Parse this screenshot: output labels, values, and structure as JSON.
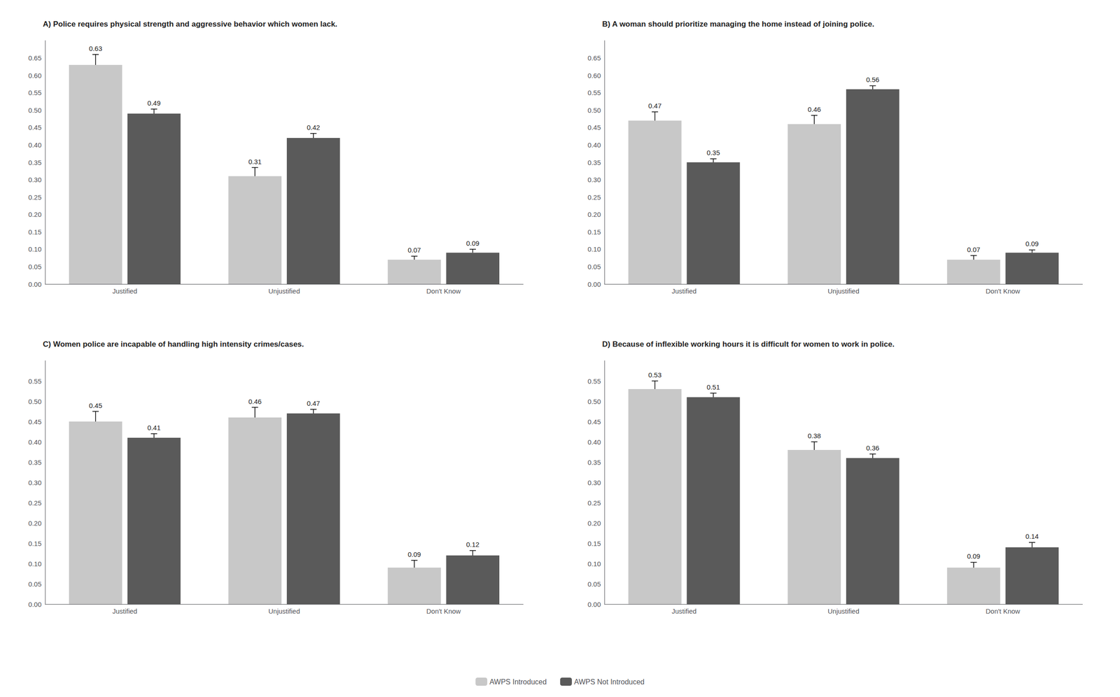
{
  "chart_data": [
    {
      "type": "bar",
      "title": "A) Police requires physical strength and aggressive behavior which women lack.",
      "categories": [
        "Justified",
        "Unjustified",
        "Don't Know"
      ],
      "series": [
        {
          "name": "AWPS Introduced",
          "color": "#c8c8c8",
          "values": [
            0.63,
            0.31,
            0.07
          ],
          "errors": [
            0.03,
            0.025,
            0.01
          ]
        },
        {
          "name": "AWPS Not Introduced",
          "color": "#5a5a5a",
          "values": [
            0.49,
            0.42,
            0.09
          ],
          "errors": [
            0.013,
            0.013,
            0.01
          ]
        }
      ],
      "ylim": [
        0,
        0.7
      ],
      "yticks": [
        {
          "value": 0,
          "label": "0.00"
        },
        0.05,
        {
          "value": 0.1,
          "label": "0.10"
        },
        0.15,
        {
          "value": 0.2,
          "label": "0.20"
        },
        0.25,
        {
          "value": 0.3,
          "label": "0.30"
        },
        0.35,
        {
          "value": 0.4,
          "label": "0.40"
        },
        0.45,
        {
          "value": 0.5,
          "label": "0.50"
        },
        0.55,
        {
          "value": 0.6,
          "label": "0.60"
        },
        0.65
      ],
      "grid": false,
      "legend": "bottom",
      "data_labels": true
    },
    {
      "type": "bar",
      "title": "B) A woman should prioritize managing the home instead of joining police.",
      "categories": [
        "Justified",
        "Unjustified",
        "Don't Know"
      ],
      "series": [
        {
          "name": "AWPS Introduced",
          "color": "#c8c8c8",
          "values": [
            0.47,
            0.46,
            0.07
          ],
          "errors": [
            0.025,
            0.025,
            0.012
          ]
        },
        {
          "name": "AWPS Not Introduced",
          "color": "#5a5a5a",
          "values": [
            0.35,
            0.56,
            0.09
          ],
          "errors": [
            0.01,
            0.01,
            0.008
          ]
        }
      ],
      "ylim": [
        0,
        0.7
      ],
      "yticks": [
        {
          "value": 0,
          "label": "0.00"
        },
        0.05,
        {
          "value": 0.1,
          "label": "0.10"
        },
        0.15,
        {
          "value": 0.2,
          "label": "0.20"
        },
        0.25,
        {
          "value": 0.3,
          "label": "0.30"
        },
        0.35,
        {
          "value": 0.4,
          "label": "0.40"
        },
        0.45,
        {
          "value": 0.5,
          "label": "0.50"
        },
        0.55,
        {
          "value": 0.6,
          "label": "0.60"
        },
        0.65
      ],
      "grid": false,
      "legend": "bottom",
      "data_labels": true
    },
    {
      "type": "bar",
      "title": "C) Women police are incapable of handling high intensity crimes/cases.",
      "categories": [
        "Justified",
        "Unjustified",
        "Don't Know"
      ],
      "series": [
        {
          "name": "AWPS Introduced",
          "color": "#c8c8c8",
          "values": [
            0.45,
            0.46,
            0.09
          ],
          "errors": [
            0.025,
            0.025,
            0.018
          ]
        },
        {
          "name": "AWPS Not Introduced",
          "color": "#5a5a5a",
          "values": [
            0.41,
            0.47,
            0.12
          ],
          "errors": [
            0.01,
            0.01,
            0.012
          ]
        }
      ],
      "ylim": [
        0,
        0.6
      ],
      "yticks": [
        {
          "value": 0,
          "label": "0.00"
        },
        0.05,
        {
          "value": 0.1,
          "label": "0.10"
        },
        0.15,
        {
          "value": 0.2,
          "label": "0.20"
        },
        0.25,
        {
          "value": 0.3,
          "label": "0.30"
        },
        0.35,
        {
          "value": 0.4,
          "label": "0.40"
        },
        0.45,
        {
          "value": 0.5,
          "label": "0.50"
        },
        0.55
      ],
      "grid": false,
      "legend": "bottom",
      "data_labels": true
    },
    {
      "type": "bar",
      "title": "D) Because of inflexible working hours it is difficult for women to work in police.",
      "categories": [
        "Justified",
        "Unjustified",
        "Don't Know"
      ],
      "series": [
        {
          "name": "AWPS Introduced",
          "color": "#c8c8c8",
          "values": [
            0.53,
            0.38,
            0.09
          ],
          "errors": [
            0.02,
            0.02,
            0.013
          ]
        },
        {
          "name": "AWPS Not Introduced",
          "color": "#5a5a5a",
          "values": [
            0.51,
            0.36,
            0.14
          ],
          "errors": [
            0.01,
            0.01,
            0.012
          ]
        }
      ],
      "ylim": [
        0,
        0.6
      ],
      "yticks": [
        {
          "value": 0,
          "label": "0.00"
        },
        0.05,
        {
          "value": 0.1,
          "label": "0.10"
        },
        0.15,
        {
          "value": 0.2,
          "label": "0.20"
        },
        0.25,
        {
          "value": 0.3,
          "label": "0.30"
        },
        0.35,
        {
          "value": 0.4,
          "label": "0.40"
        },
        0.45,
        {
          "value": 0.5,
          "label": "0.50"
        },
        0.55
      ],
      "grid": false,
      "legend": "bottom",
      "data_labels": true
    }
  ]
}
